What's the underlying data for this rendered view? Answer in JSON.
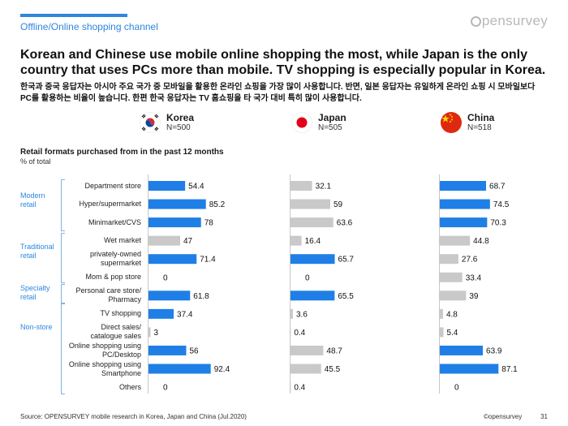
{
  "header": {
    "section_title": "Offline/Online shopping channel",
    "brand": "pensurvey",
    "headline": "Korean and Chinese use mobile online shopping the most, while Japan is the only country that uses PCs more than mobile. TV shopping is especially popular in Korea.",
    "subheadline": "한국과 중국 응답자는 아시아 주요 국가 중 모바일을 활용한 온라인 쇼핑을 가장 많이 사용합니다. 반면, 일본 응답자는 유일하게 온라인 쇼핑 시 모바일보다 PC를 활용하는 비율이 높습니다. 한편 한국 응답자는 TV 홈쇼핑을 타 국가 대비 특히 많이 사용합니다."
  },
  "countries": [
    {
      "name": "Korea",
      "n": "N=500"
    },
    {
      "name": "Japan",
      "n": "N=505"
    },
    {
      "name": "China",
      "n": "N=518"
    }
  ],
  "groups": [
    {
      "label": "Modern\nretail"
    },
    {
      "label": "Traditional\nretail"
    },
    {
      "label": "Specialty\nretail"
    },
    {
      "label": "Non-store"
    }
  ],
  "colors": {
    "accent": "#2e86de",
    "highlight": "#1f7fe6",
    "muted": "#c9c9c9"
  },
  "chart_data": {
    "type": "bar",
    "orientation": "horizontal",
    "title": "Retail formats purchased from in the past 12 months",
    "subtitle": "% of total",
    "categories": [
      "Department store",
      "Hyper/supermarket",
      "Minimarket/CVS",
      "Wet market",
      "privately-owned\nsupermarket",
      "Mom & pop store",
      "Personal care store/\nPharmacy",
      "TV shopping",
      "Direct sales/\ncatalogue sales",
      "Online shopping using\nPC/Desktop",
      "Online shopping using\nSmartphone",
      "Others"
    ],
    "series": [
      {
        "name": "Korea",
        "values": [
          54.4,
          85.2,
          78,
          47,
          71.4,
          0,
          61.8,
          37.4,
          3,
          56,
          92.4,
          0
        ],
        "value_labels": [
          "54.4",
          "85.2",
          "78",
          "47",
          "71.4",
          "0",
          "61.8",
          "37.4",
          "3",
          "56",
          "92.4",
          "0"
        ],
        "highlight": [
          true,
          true,
          true,
          false,
          true,
          false,
          true,
          true,
          false,
          true,
          true,
          false
        ]
      },
      {
        "name": "Japan",
        "values": [
          32.1,
          59,
          63.6,
          16.4,
          65.7,
          0,
          65.5,
          3.6,
          0.4,
          48.7,
          45.5,
          0.4
        ],
        "value_labels": [
          "32.1",
          "59",
          "63.6",
          "16.4",
          "65.7",
          "0",
          "65.5",
          "3.6",
          "0.4",
          "48.7",
          "45.5",
          "0.4"
        ],
        "highlight": [
          false,
          false,
          false,
          false,
          true,
          false,
          true,
          false,
          false,
          false,
          false,
          false
        ]
      },
      {
        "name": "China",
        "values": [
          68.7,
          74.5,
          70.3,
          44.8,
          27.6,
          33.4,
          39,
          4.8,
          5.4,
          63.9,
          87.1,
          0
        ],
        "value_labels": [
          "68.7",
          "74.5",
          "70.3",
          "44.8",
          "27.6",
          "33.4",
          "39",
          "4.8",
          "5.4",
          "63.9",
          "87.1",
          "0"
        ],
        "highlight": [
          true,
          true,
          true,
          false,
          false,
          false,
          false,
          false,
          false,
          true,
          true,
          false
        ]
      }
    ],
    "xlim": [
      0,
      100
    ],
    "grid": false,
    "legend": "none"
  },
  "footer": {
    "source": "Source: OPENSURVEY mobile research in Korea, Japan and China (Jul.2020)",
    "copyright": "©opensurvey",
    "page": "31"
  }
}
